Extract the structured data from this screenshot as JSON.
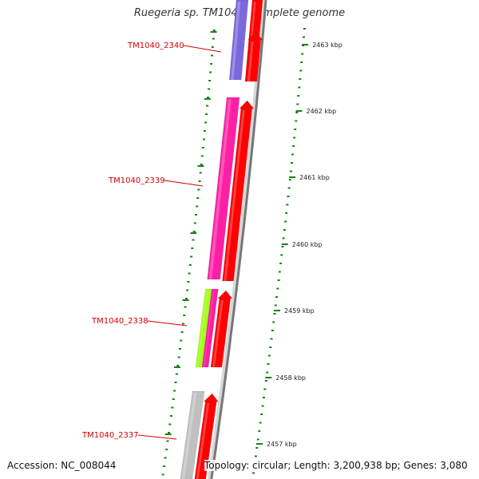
{
  "title": "Ruegeria sp. TM1040, complete genome",
  "accession": "Accession: NC_008044",
  "summary": "Topology: circular; Length: 3,200,938 bp; Genes: 3,080",
  "colors": {
    "label": "#d40000",
    "tick": "#1a7f1a",
    "backbone_light": "#d8d8d8",
    "backbone_dark": "#777777",
    "red": "#ff0000",
    "purple": "#7b68dd",
    "magenta": "#ff1fa5",
    "lime": "#a8ff1f",
    "gray": "#c0c0c0"
  },
  "genes": [
    {
      "label": "TM1040_2340"
    },
    {
      "label": "TM1040_2339"
    },
    {
      "label": "TM1040_2338"
    },
    {
      "label": "TM1040_2337"
    }
  ],
  "scale": [
    {
      "label": "2463 kbp"
    },
    {
      "label": "2462 kbp"
    },
    {
      "label": "2461 kbp"
    },
    {
      "label": "2460 kbp"
    },
    {
      "label": "2459 kbp"
    },
    {
      "label": "2458 kbp"
    },
    {
      "label": "2457 kbp"
    }
  ]
}
